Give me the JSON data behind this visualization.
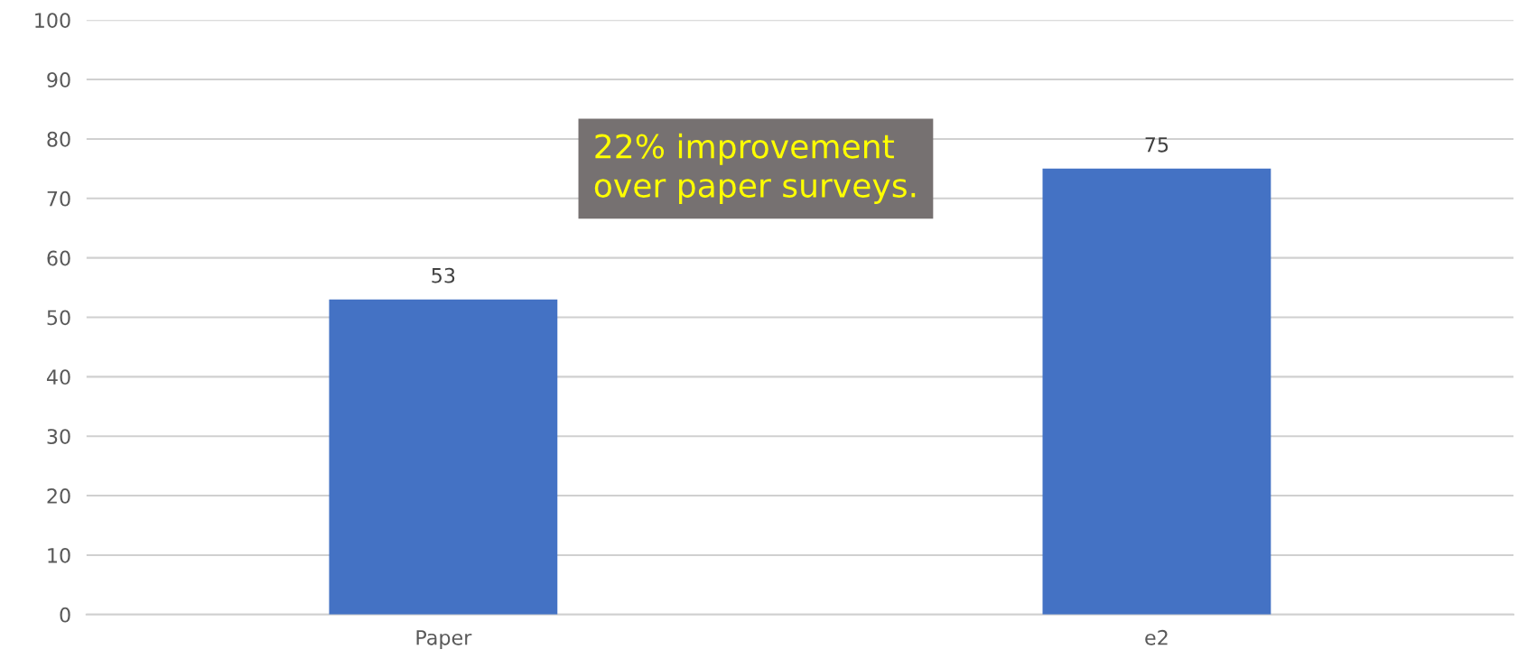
{
  "chart_data": {
    "type": "bar",
    "categories": [
      "Paper",
      "e2"
    ],
    "values": [
      53,
      75
    ],
    "color": "#4472c4",
    "data_labels": true,
    "ylim": [
      0,
      100
    ],
    "yticks": [
      0,
      10,
      20,
      30,
      40,
      50,
      60,
      70,
      80,
      90,
      100
    ],
    "grid": "y",
    "annotations": [
      "22% improvement\nover paper surveys."
    ]
  }
}
